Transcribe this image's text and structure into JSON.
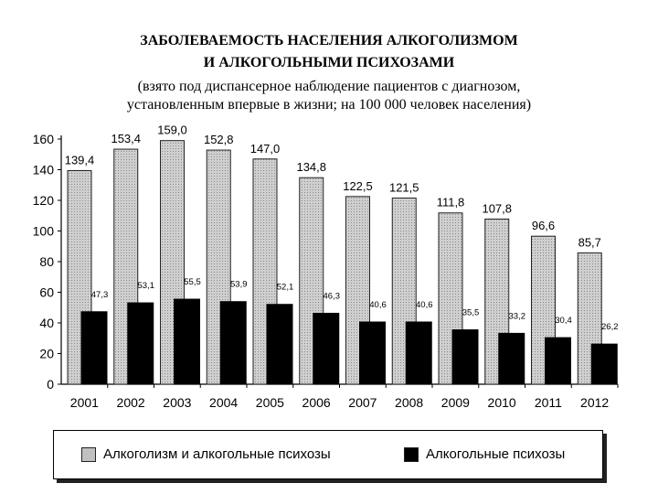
{
  "title": {
    "line1": "ЗАБОЛЕВАЕМОСТЬ НАСЕЛЕНИЯ  АЛКОГОЛИЗМОМ",
    "line2": "И АЛКОГОЛЬНЫМИ ПСИХОЗАМИ",
    "line3": "(взято под диспансерное наблюдение пациентов с диагнозом,",
    "line4": "установленным впервые в жизни; на 100 000 человек населения)"
  },
  "colors": {
    "series1": "#c0c0c0",
    "series2": "#000000"
  },
  "chart_data": {
    "type": "bar",
    "categories": [
      "2001",
      "2002",
      "2003",
      "2004",
      "2005",
      "2006",
      "2007",
      "2008",
      "2009",
      "2010",
      "2011",
      "2012"
    ],
    "series": [
      {
        "name": "Алкоголизм и алкогольные психозы",
        "values": [
          139.4,
          153.4,
          159.0,
          152.8,
          147.0,
          134.8,
          122.5,
          121.5,
          111.8,
          107.8,
          96.6,
          85.7
        ],
        "labels": [
          "139,4",
          "153,4",
          "159,0",
          "152,8",
          "147,0",
          "134,8",
          "122,5",
          "121,5",
          "111,8",
          "107,8",
          "96,6",
          "85,7"
        ]
      },
      {
        "name": "Алкогольные психозы",
        "values": [
          47.3,
          53.1,
          55.5,
          53.9,
          52.1,
          46.3,
          40.6,
          40.6,
          35.5,
          33.2,
          30.4,
          26.2
        ],
        "labels": [
          "47,3",
          "53,1",
          "55,5",
          "53,9",
          "52,1",
          "46,3",
          "40,6",
          "40,6",
          "35,5",
          "33,2",
          "30,4",
          "26,2"
        ]
      }
    ],
    "yticks": [
      "0",
      "20",
      "40",
      "60",
      "80",
      "100",
      "120",
      "140",
      "160"
    ],
    "ylim": [
      0,
      160
    ],
    "grid": false,
    "legend_position": "bottom"
  }
}
